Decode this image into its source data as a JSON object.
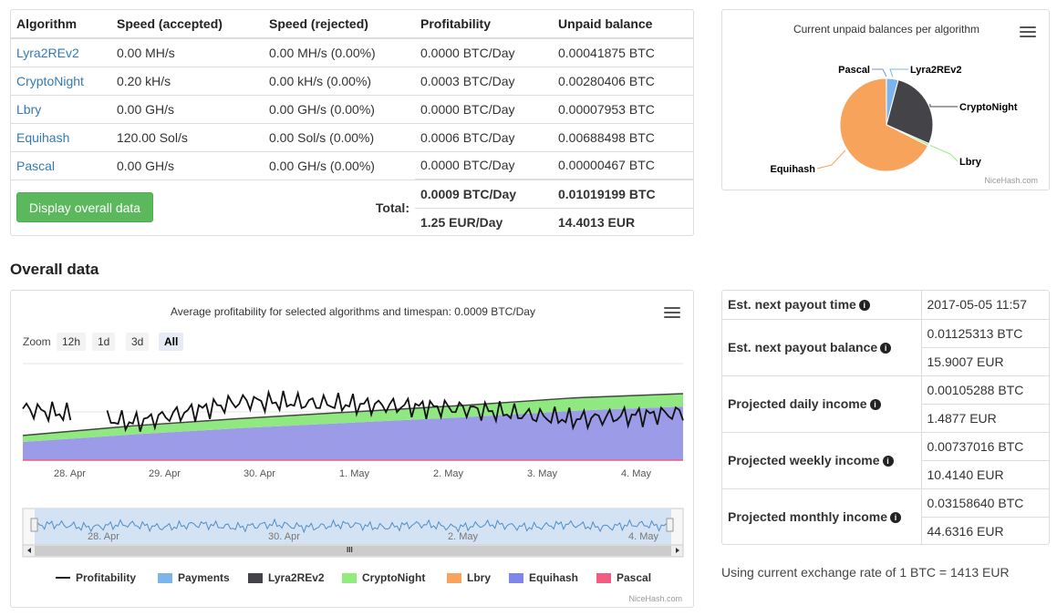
{
  "table": {
    "headers": [
      "Algorithm",
      "Speed (accepted)",
      "Speed (rejected)",
      "Profitability",
      "Unpaid balance"
    ],
    "rows": [
      {
        "algo": "Lyra2REv2",
        "accepted": "0.00 MH/s",
        "rejected": "0.00 MH/s (0.00%)",
        "profit": "0.0000 BTC/Day",
        "balance": "0.00041875 BTC"
      },
      {
        "algo": "CryptoNight",
        "accepted": "0.20 kH/s",
        "rejected": "0.00 kH/s (0.00%)",
        "profit": "0.0003 BTC/Day",
        "balance": "0.00280406 BTC"
      },
      {
        "algo": "Lbry",
        "accepted": "0.00 GH/s",
        "rejected": "0.00 GH/s (0.00%)",
        "profit": "0.0000 BTC/Day",
        "balance": "0.00007953 BTC"
      },
      {
        "algo": "Equihash",
        "accepted": "120.00 Sol/s",
        "rejected": "0.00 Sol/s (0.00%)",
        "profit": "0.0006 BTC/Day",
        "balance": "0.00688498 BTC"
      },
      {
        "algo": "Pascal",
        "accepted": "0.00 GH/s",
        "rejected": "0.00 GH/s (0.00%)",
        "profit": "0.0000 BTC/Day",
        "balance": "0.00000467 BTC"
      }
    ],
    "total_label": "Total:",
    "total_btc_profit": "0.0009 BTC/Day",
    "total_btc_balance": "0.01019199 BTC",
    "total_eur_profit": "1.25 EUR/Day",
    "total_eur_balance": "14.4013 EUR",
    "button_label": "Display overall data"
  },
  "pie": {
    "title": "Current unpaid balances per algorithm",
    "credit": "NiceHash.com",
    "chart_data": {
      "type": "pie",
      "title": "Current unpaid balances per algorithm",
      "slices": [
        {
          "name": "Lyra2REv2",
          "value": 0.00041875,
          "color": "#7cb5ec"
        },
        {
          "name": "CryptoNight",
          "value": 0.00280406,
          "color": "#434348"
        },
        {
          "name": "Lbry",
          "value": 7.953e-05,
          "color": "#90ed7d"
        },
        {
          "name": "Equihash",
          "value": 0.00688498,
          "color": "#f7a35c"
        },
        {
          "name": "Pascal",
          "value": 4.67e-06,
          "color": "#8085e9"
        }
      ]
    }
  },
  "overall": {
    "heading": "Overall data",
    "chart_title": "Average profitability for selected algorithms and timespan: 0.0009 BTC/Day",
    "zoom_label": "Zoom",
    "zoom_options": [
      "12h",
      "1d",
      "3d",
      "All"
    ],
    "x_labels": [
      "28. Apr",
      "29. Apr",
      "30. Apr",
      "1. May",
      "2. May",
      "3. May",
      "4. May"
    ],
    "nav_labels": [
      "28. Apr",
      "30. Apr",
      "2. May",
      "4. May"
    ],
    "scrollbar_grip": "III",
    "credit": "NiceHash.com",
    "legend": [
      {
        "name": "Profitability",
        "color": "#222222"
      },
      {
        "name": "Payments",
        "color": "#7cb5ec"
      },
      {
        "name": "Lyra2REv2",
        "color": "#434348"
      },
      {
        "name": "CryptoNight",
        "color": "#90ed7d"
      },
      {
        "name": "Lbry",
        "color": "#f7a35c"
      },
      {
        "name": "Equihash",
        "color": "#8085e9"
      },
      {
        "name": "Pascal",
        "color": "#f15c80"
      }
    ],
    "chart_data": {
      "type": "area",
      "title": "Average profitability for selected algorithms and timespan: 0.0009 BTC/Day",
      "categories": [
        "28. Apr",
        "29. Apr",
        "30. Apr",
        "1. May",
        "2. May",
        "3. May",
        "4. May"
      ],
      "series": [
        {
          "name": "Equihash",
          "values": [
            0.00017,
            0.00024,
            0.0003,
            0.00035,
            0.0004,
            0.00046,
            0.0005
          ]
        },
        {
          "name": "CryptoNight",
          "values": [
            6e-05,
            8e-05,
            9e-05,
            0.0001,
            0.00011,
            0.00012,
            0.00012
          ]
        },
        {
          "name": "Profitability",
          "values": [
            0.00048,
            0.00035,
            0.00055,
            0.00052,
            0.00048,
            0.00038,
            0.00044
          ]
        }
      ]
    }
  },
  "payout": {
    "rows": [
      {
        "label": "Est. next payout time",
        "values": [
          "2017-05-05 11:57"
        ]
      },
      {
        "label": "Est. next payout balance",
        "values": [
          "0.01125313 BTC",
          "15.9007 EUR"
        ]
      },
      {
        "label": "Projected daily income",
        "values": [
          "0.00105288 BTC",
          "1.4877 EUR"
        ]
      },
      {
        "label": "Projected weekly income",
        "values": [
          "0.00737016 BTC",
          "10.4140 EUR"
        ]
      },
      {
        "label": "Projected monthly income",
        "values": [
          "0.03158640 BTC",
          "44.6316 EUR"
        ]
      }
    ],
    "info_icon": "i",
    "exchange_note": "Using current exchange rate of 1 BTC = 1413 EUR"
  }
}
